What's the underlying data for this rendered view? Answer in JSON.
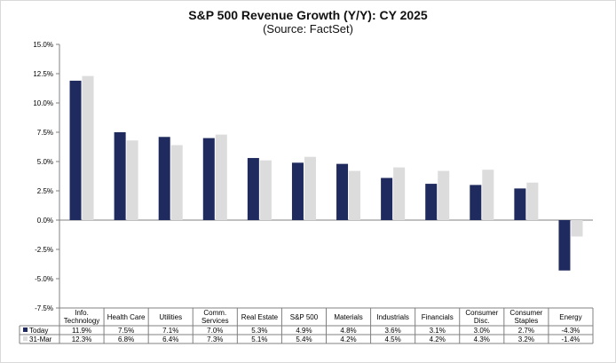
{
  "chart_data": {
    "type": "bar",
    "title": "S&P 500 Revenue Growth (Y/Y): CY 2025",
    "subtitle": "(Source: FactSet)",
    "categories": [
      [
        "Info.",
        "Technology"
      ],
      [
        "Health Care"
      ],
      [
        "Utilities"
      ],
      [
        "Comm.",
        "Services"
      ],
      [
        "Real Estate"
      ],
      [
        "S&P 500"
      ],
      [
        "Materials"
      ],
      [
        "Industrials"
      ],
      [
        "Financials"
      ],
      [
        "Consumer",
        "Disc."
      ],
      [
        "Consumer",
        "Staples"
      ],
      [
        "Energy"
      ]
    ],
    "series": [
      {
        "name": "Today",
        "color": "#1f2a5e",
        "values": [
          11.9,
          7.5,
          7.1,
          7.0,
          5.3,
          4.9,
          4.8,
          3.6,
          3.1,
          3.0,
          2.7,
          -4.3
        ],
        "labels": [
          "11.9%",
          "7.5%",
          "7.1%",
          "7.0%",
          "5.3%",
          "4.9%",
          "4.8%",
          "3.6%",
          "3.1%",
          "3.0%",
          "2.7%",
          "-4.3%"
        ]
      },
      {
        "name": "31-Mar",
        "color": "#dcdcdc",
        "values": [
          12.3,
          6.8,
          6.4,
          7.3,
          5.1,
          5.4,
          4.2,
          4.5,
          4.2,
          4.3,
          3.2,
          -1.4
        ],
        "labels": [
          "12.3%",
          "6.8%",
          "6.4%",
          "7.3%",
          "5.1%",
          "5.4%",
          "4.2%",
          "4.5%",
          "4.2%",
          "4.3%",
          "3.2%",
          "-1.4%"
        ]
      }
    ],
    "ylim": [
      -7.5,
      15.0
    ],
    "yticks": [
      15.0,
      12.5,
      10.0,
      7.5,
      5.0,
      2.5,
      0.0,
      -2.5,
      -5.0,
      -7.5
    ],
    "ytick_labels": [
      "15.0%",
      "12.5%",
      "10.0%",
      "7.5%",
      "5.0%",
      "2.5%",
      "0.0%",
      "-2.5%",
      "-5.0%",
      "-7.5%"
    ],
    "grid": false,
    "legend": "data table below chart"
  }
}
